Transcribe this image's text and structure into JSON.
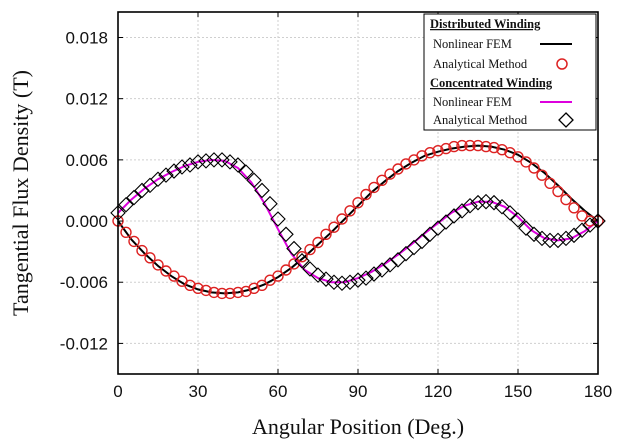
{
  "chart_data": {
    "type": "line",
    "xlabel": "Angular Position (Deg.)",
    "ylabel": "Tangential Flux Density (T)",
    "xlim": [
      0,
      180
    ],
    "ylim": [
      -0.015,
      0.0205
    ],
    "x_ticks": [
      "0",
      "30",
      "60",
      "90",
      "120",
      "150",
      "180"
    ],
    "y_ticks": [
      "0.018",
      "0.012",
      "0.006",
      "0.000",
      "-0.006",
      "-0.012"
    ],
    "grid": true,
    "legend_position": "top-right",
    "legend_groups": [
      {
        "heading": "Distributed Winding",
        "entries": [
          "Nonlinear FEM",
          "Analytical Method"
        ]
      },
      {
        "heading": "Concentrated Winding",
        "entries": [
          "Nonlinear FEM",
          "Analytical Method"
        ]
      }
    ],
    "series": [
      {
        "name": "Nonlinear FEM",
        "group": "Distributed Winding",
        "style": "line",
        "color": "#000000",
        "x": [
          0,
          5,
          10,
          15,
          20,
          25,
          30,
          35,
          40,
          45,
          50,
          55,
          60,
          65,
          70,
          75,
          80,
          85,
          90,
          95,
          100,
          105,
          110,
          115,
          120,
          125,
          130,
          135,
          140,
          145,
          150,
          155,
          160,
          165,
          170,
          175,
          180
        ],
        "y": [
          0.0,
          -0.0018,
          -0.0032,
          -0.0044,
          -0.0054,
          -0.0062,
          -0.0067,
          -0.007,
          -0.0071,
          -0.007,
          -0.0067,
          -0.0062,
          -0.0055,
          -0.0046,
          -0.0035,
          -0.0023,
          -0.0011,
          0.0002,
          0.0015,
          0.0028,
          0.0039,
          0.0049,
          0.0057,
          0.0064,
          0.0068,
          0.0071,
          0.0073,
          0.0074,
          0.0073,
          0.007,
          0.0065,
          0.0057,
          0.0047,
          0.0035,
          0.0022,
          0.001,
          0.0
        ]
      },
      {
        "name": "Analytical Method",
        "group": "Distributed Winding",
        "style": "circle",
        "color": "#dd2222",
        "x": [
          0,
          3,
          6,
          9,
          12,
          15,
          18,
          21,
          24,
          27,
          30,
          33,
          36,
          39,
          42,
          45,
          48,
          51,
          54,
          57,
          60,
          63,
          66,
          69,
          72,
          75,
          78,
          81,
          84,
          87,
          90,
          93,
          96,
          99,
          102,
          105,
          108,
          111,
          114,
          117,
          120,
          123,
          126,
          129,
          132,
          135,
          138,
          141,
          144,
          147,
          150,
          153,
          156,
          159,
          162,
          165,
          168,
          171,
          174,
          177,
          180
        ],
        "y": [
          0.0,
          -0.0011,
          -0.002,
          -0.0029,
          -0.0036,
          -0.0043,
          -0.0049,
          -0.0054,
          -0.0059,
          -0.0063,
          -0.0066,
          -0.0068,
          -0.007,
          -0.0071,
          -0.0071,
          -0.007,
          -0.0069,
          -0.0066,
          -0.0063,
          -0.0058,
          -0.0054,
          -0.0048,
          -0.0042,
          -0.0035,
          -0.0028,
          -0.0021,
          -0.0013,
          -0.0006,
          0.0002,
          0.001,
          0.0018,
          0.0026,
          0.0033,
          0.004,
          0.0046,
          0.0051,
          0.0056,
          0.006,
          0.0064,
          0.0067,
          0.0069,
          0.0071,
          0.0073,
          0.0074,
          0.0074,
          0.0074,
          0.0073,
          0.0072,
          0.007,
          0.0067,
          0.0063,
          0.0058,
          0.0052,
          0.0045,
          0.0037,
          0.0029,
          0.0021,
          0.0013,
          0.0005,
          0.0,
          0.0
        ]
      },
      {
        "name": "Nonlinear FEM",
        "group": "Concentrated Winding",
        "style": "line",
        "color": "#dd00dd",
        "x": [
          0,
          5,
          10,
          15,
          20,
          25,
          30,
          35,
          40,
          45,
          50,
          55,
          60,
          65,
          70,
          75,
          80,
          85,
          90,
          95,
          100,
          105,
          110,
          115,
          120,
          125,
          130,
          135,
          140,
          145,
          150,
          155,
          160,
          165,
          170,
          175,
          180
        ],
        "y": [
          0.0008,
          0.0021,
          0.0032,
          0.0041,
          0.0048,
          0.0054,
          0.0058,
          0.006,
          0.0059,
          0.0052,
          0.0038,
          0.0017,
          -0.0008,
          -0.0032,
          -0.0048,
          -0.0056,
          -0.006,
          -0.006,
          -0.0056,
          -0.005,
          -0.0042,
          -0.0033,
          -0.0023,
          -0.0012,
          -0.0002,
          0.0008,
          0.0015,
          0.0019,
          0.0019,
          0.0014,
          0.0004,
          -0.0009,
          -0.0017,
          -0.0019,
          -0.0017,
          -0.001,
          0.0
        ]
      },
      {
        "name": "Analytical Method",
        "group": "Concentrated Winding",
        "style": "diamond",
        "color": "#000000",
        "x": [
          0,
          3,
          6,
          9,
          12,
          15,
          18,
          21,
          24,
          27,
          30,
          33,
          36,
          39,
          42,
          45,
          48,
          51,
          54,
          57,
          60,
          63,
          66,
          69,
          72,
          75,
          78,
          81,
          84,
          87,
          90,
          93,
          96,
          99,
          102,
          105,
          108,
          111,
          114,
          117,
          120,
          123,
          126,
          129,
          132,
          135,
          138,
          141,
          144,
          147,
          150,
          153,
          156,
          159,
          162,
          165,
          168,
          171,
          174,
          177,
          180
        ],
        "y": [
          0.0008,
          0.0016,
          0.0023,
          0.003,
          0.0035,
          0.0041,
          0.0045,
          0.0049,
          0.0053,
          0.0055,
          0.0058,
          0.0059,
          0.006,
          0.006,
          0.0058,
          0.0055,
          0.0048,
          0.004,
          0.003,
          0.0017,
          0.0002,
          -0.0013,
          -0.0027,
          -0.0039,
          -0.0047,
          -0.0053,
          -0.0057,
          -0.006,
          -0.0061,
          -0.006,
          -0.0058,
          -0.0056,
          -0.0052,
          -0.0048,
          -0.0043,
          -0.0038,
          -0.0032,
          -0.0026,
          -0.002,
          -0.0013,
          -0.0007,
          -0.0001,
          0.0005,
          0.001,
          0.0015,
          0.0018,
          0.0019,
          0.0018,
          0.0014,
          0.0008,
          0.0001,
          -0.0007,
          -0.0013,
          -0.0017,
          -0.0019,
          -0.0019,
          -0.0017,
          -0.0014,
          -0.0009,
          -0.0004,
          0.0
        ]
      }
    ]
  }
}
